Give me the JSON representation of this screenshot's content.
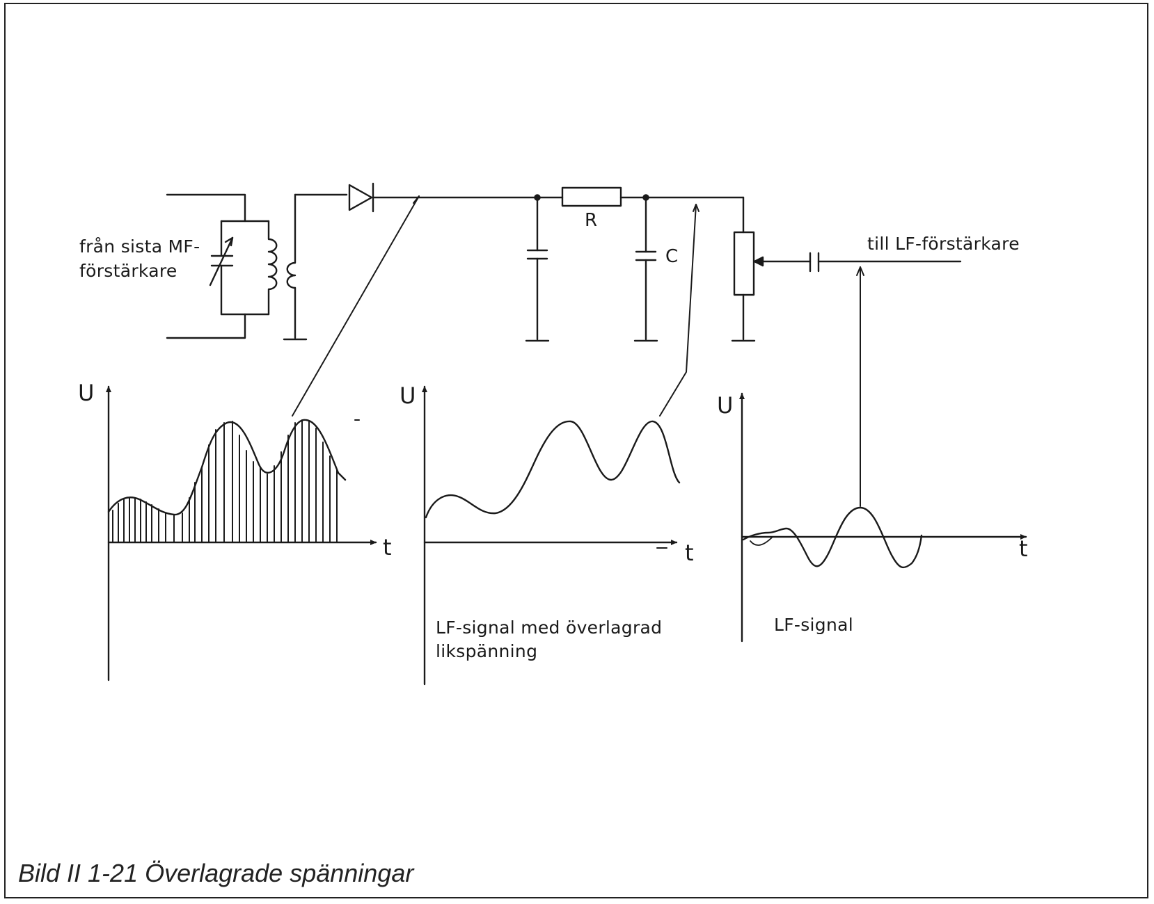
{
  "labels": {
    "source_line1": "från sista MF-",
    "source_line2": "förstärkare",
    "output": "till LF-förstärkare",
    "resistor": "R",
    "capacitor": "C",
    "axis_u": "U",
    "axis_t": "t",
    "graph2_line1": "LF-signal med överlagrad",
    "graph2_line2": "likspänning",
    "graph3": "LF-signal"
  },
  "caption": "Bild II 1-21 Överlagrade spänningar",
  "colors": {
    "ink": "#1a1a1a",
    "background": "#ffffff"
  }
}
